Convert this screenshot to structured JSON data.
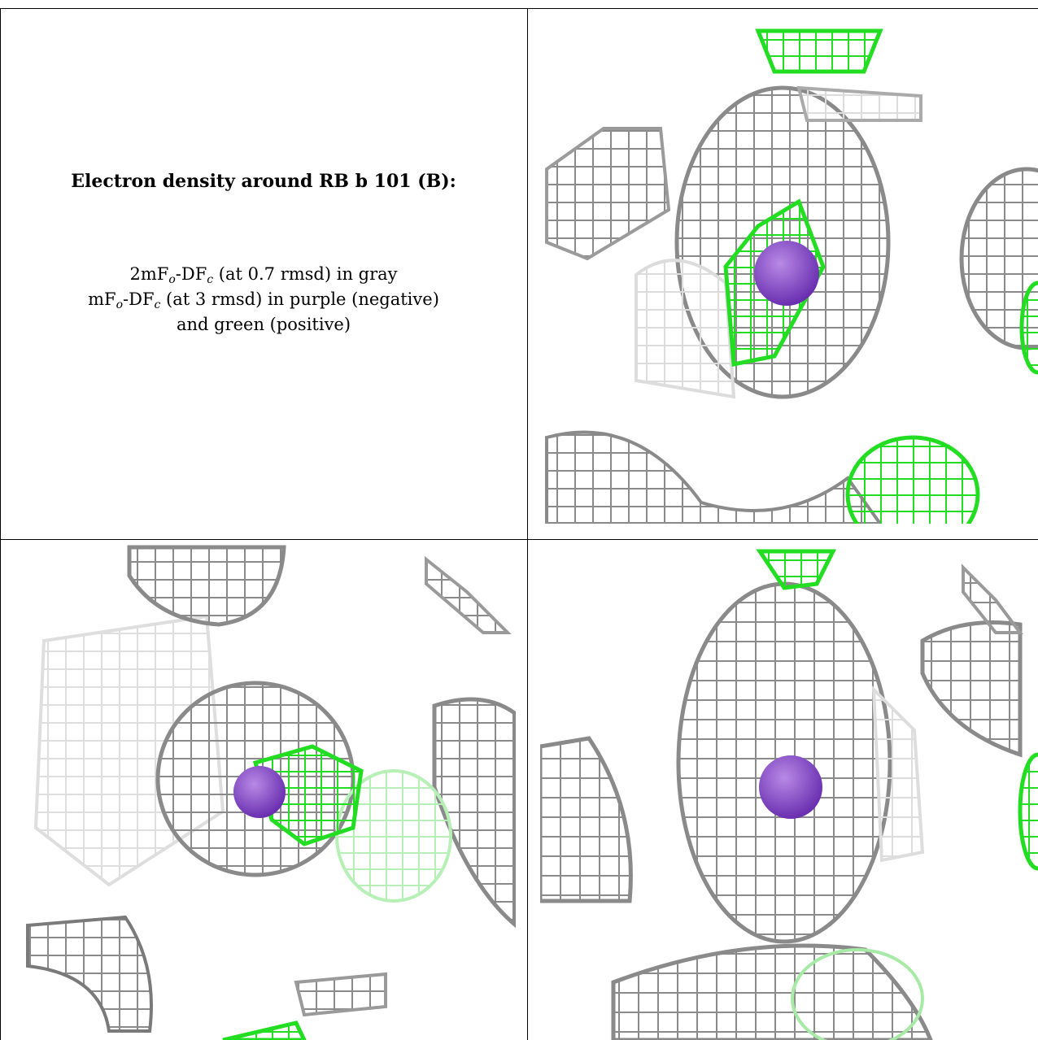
{
  "caption": {
    "title": "Electron density around RB b 101 (B):",
    "line1_a": "2mF",
    "line1_sub1": "o",
    "line1_b": "-DF",
    "line1_sub2": "c",
    "line1_c": " (at 0.7 rmsd) in gray",
    "line2_a": "mF",
    "line2_sub1": "o",
    "line2_b": "-DF",
    "line2_sub2": "c",
    "line2_c": " (at 3 rmsd) in purple (negative)",
    "line3": "and green (positive)"
  },
  "colors": {
    "gray_mesh": "#8a8a8a",
    "light_mesh": "#d9d9d9",
    "positive_mesh": "#22dd22",
    "negative_mesh": "#9b30c8",
    "atom": "#7f3fbf"
  },
  "panels": [
    {
      "name": "density-view-top-right",
      "atom": "rubidium-atom-sphere"
    },
    {
      "name": "density-view-bottom-left",
      "atom": "rubidium-atom-sphere"
    },
    {
      "name": "density-view-bottom-right",
      "atom": "rubidium-atom-sphere"
    }
  ]
}
